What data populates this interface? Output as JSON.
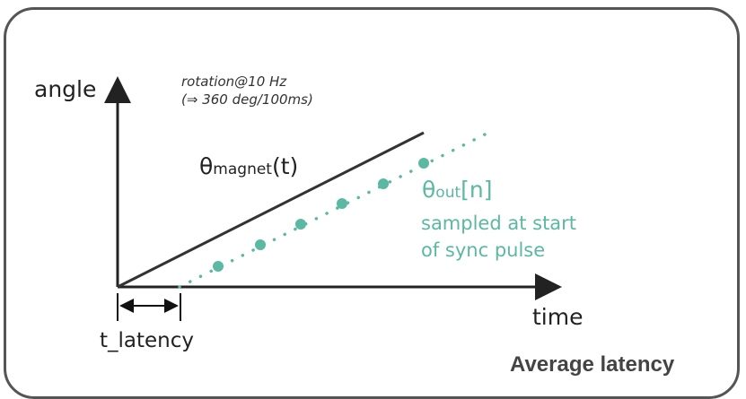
{
  "diagram": {
    "y_axis_label": "angle",
    "x_axis_label": "time",
    "note_line1": "rotation@10 Hz",
    "note_line2": "(⇒ 360 deg/100ms)",
    "magnet_label": {
      "symbol": "θ",
      "subscript": "magnet",
      "suffix": "(t)"
    },
    "out_label": {
      "symbol": "θ",
      "subscript": "out",
      "suffix": "[n]"
    },
    "out_desc_line1": "sampled at start",
    "out_desc_line2": "of sync pulse",
    "latency_label": "t_latency",
    "title": "Average latency",
    "colors": {
      "magnet_line": "#333333",
      "sample_series": "#5bb8a3",
      "border": "#555555"
    }
  }
}
